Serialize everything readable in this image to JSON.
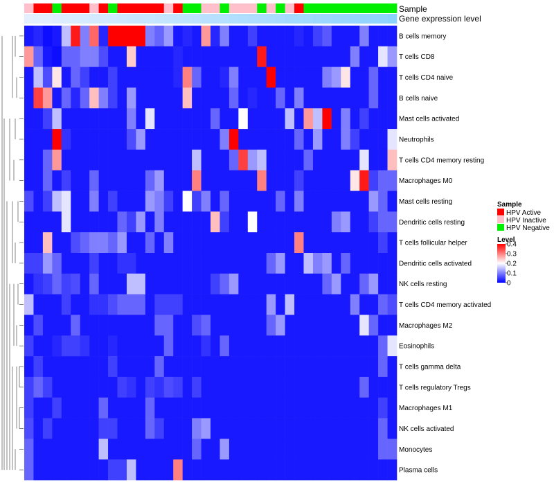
{
  "chart_data": {
    "type": "heatmap",
    "title": "",
    "annotation_tracks": [
      "Sample",
      "Gene expression level"
    ],
    "sample_legend": {
      "title": "Sample",
      "entries": [
        {
          "label": "HPV Active",
          "color": "#ff0000"
        },
        {
          "label": "HPV Inactive",
          "color": "#ffc0cb"
        },
        {
          "label": "HPV Negative",
          "color": "#00ee00"
        }
      ]
    },
    "level_legend": {
      "title": "Level",
      "ticks": [
        "0.4",
        "0.3",
        "0.2",
        "0.1",
        "0"
      ],
      "tick_values": [
        0.4,
        0.3,
        0.2,
        0.1,
        0
      ],
      "range": [
        0,
        0.4
      ],
      "colors": {
        "low": "#0000ff",
        "mid": "#ffffff",
        "high": "#ff0000"
      }
    },
    "sample_groups": [
      "Inactive",
      "Active",
      "Active",
      "Negative",
      "Active",
      "Active",
      "Active",
      "Inactive",
      "Active",
      "Negative",
      "Active",
      "Active",
      "Active",
      "Active",
      "Active",
      "Inactive",
      "Active",
      "Negative",
      "Negative",
      "Inactive",
      "Inactive",
      "Negative",
      "Inactive",
      "Inactive",
      "Inactive",
      "Negative",
      "Inactive",
      "Negative",
      "Inactive",
      "Active",
      "Negative",
      "Negative",
      "Negative",
      "Negative",
      "Negative",
      "Negative",
      "Negative",
      "Negative",
      "Negative",
      "Negative"
    ],
    "gene_expression_level": [
      0.02,
      0.05,
      0.07,
      0.1,
      0.12,
      0.15,
      0.18,
      0.2,
      0.22,
      0.25,
      0.28,
      0.3,
      0.32,
      0.35,
      0.37,
      0.4,
      0.42,
      0.45,
      0.47,
      0.5,
      0.52,
      0.55,
      0.57,
      0.6,
      0.62,
      0.65,
      0.67,
      0.7,
      0.72,
      0.75,
      0.77,
      0.8,
      0.82,
      0.85,
      0.87,
      0.9,
      0.92,
      0.95,
      0.97,
      1.0
    ],
    "row_labels": [
      "B cells memory",
      "T cells CD8",
      "T cells CD4 naive",
      "B cells naive",
      "Mast cells activated",
      "Neutrophils",
      "T cells CD4 memory resting",
      "Macrophages M0",
      "Mast cells resting",
      "Dendritic cells resting",
      "T cells follicular helper",
      "Dendritic cells activated",
      "NK cells resting",
      "T cells CD4 memory activated",
      "Macrophages M2",
      "Eosinophils",
      "T cells gamma delta",
      "T cells regulatory  Tregs",
      "Macrophages M1",
      "NK cells activated",
      "Monocytes",
      "Plasma cells"
    ],
    "values": [
      [
        0.02,
        0.03,
        0.01,
        0.02,
        0.15,
        0.38,
        0.1,
        0.32,
        0.03,
        0.4,
        0.4,
        0.4,
        0.4,
        0.1,
        0.08,
        0.12,
        0.02,
        0.03,
        0.02,
        0.28,
        0.03,
        0.1,
        0.02,
        0.02,
        0.05,
        0.02,
        0.02,
        0.02,
        0.02,
        0.03,
        0.02,
        0.05,
        0.07,
        0.02,
        0.02,
        0.02,
        0.1,
        0.02,
        0.02,
        0.02
      ],
      [
        0.28,
        0.08,
        0.02,
        0.01,
        0.08,
        0.08,
        0.1,
        0.1,
        0.06,
        0.02,
        0.02,
        0.24,
        0.02,
        0.02,
        0.02,
        0.02,
        0.03,
        0.02,
        0.02,
        0.02,
        0.02,
        0.02,
        0.02,
        0.02,
        0.02,
        0.38,
        0.02,
        0.02,
        0.02,
        0.02,
        0.02,
        0.02,
        0.02,
        0.02,
        0.02,
        0.1,
        0.02,
        0.02,
        0.18,
        0.12
      ],
      [
        0.02,
        0.15,
        0.06,
        0.22,
        0.02,
        0.08,
        0.05,
        0.02,
        0.02,
        0.05,
        0.02,
        0.02,
        0.02,
        0.02,
        0.02,
        0.02,
        0.03,
        0.3,
        0.08,
        0.02,
        0.02,
        0.03,
        0.1,
        0.02,
        0.02,
        0.02,
        0.4,
        0.02,
        0.02,
        0.02,
        0.02,
        0.02,
        0.1,
        0.12,
        0.22,
        0.02,
        0.02,
        0.08,
        0.02,
        0.02
      ],
      [
        0.02,
        0.35,
        0.28,
        0.02,
        0.08,
        0.03,
        0.08,
        0.25,
        0.1,
        0.05,
        0.02,
        0.12,
        0.02,
        0.02,
        0.02,
        0.02,
        0.02,
        0.25,
        0.02,
        0.02,
        0.02,
        0.02,
        0.08,
        0.02,
        0.03,
        0.02,
        0.02,
        0.08,
        0.02,
        0.1,
        0.02,
        0.02,
        0.02,
        0.02,
        0.02,
        0.02,
        0.02,
        0.08,
        0.02,
        0.02
      ],
      [
        0.02,
        0.02,
        0.05,
        0.15,
        0.02,
        0.02,
        0.02,
        0.02,
        0.02,
        0.02,
        0.02,
        0.1,
        0.02,
        0.18,
        0.02,
        0.02,
        0.02,
        0.02,
        0.02,
        0.02,
        0.08,
        0.02,
        0.02,
        0.2,
        0.02,
        0.02,
        0.02,
        0.02,
        0.15,
        0.02,
        0.28,
        0.15,
        0.4,
        0.02,
        0.1,
        0.02,
        0.05,
        0.02,
        0.02,
        0.02
      ],
      [
        0.02,
        0.02,
        0.02,
        0.4,
        0.04,
        0.02,
        0.02,
        0.02,
        0.02,
        0.02,
        0.02,
        0.06,
        0.12,
        0.02,
        0.02,
        0.02,
        0.02,
        0.02,
        0.02,
        0.02,
        0.02,
        0.1,
        0.4,
        0.02,
        0.02,
        0.02,
        0.02,
        0.02,
        0.02,
        0.08,
        0.02,
        0.12,
        0.02,
        0.02,
        0.1,
        0.05,
        0.02,
        0.02,
        0.02,
        0.18
      ],
      [
        0.02,
        0.02,
        0.08,
        0.28,
        0.02,
        0.02,
        0.02,
        0.02,
        0.02,
        0.02,
        0.02,
        0.02,
        0.02,
        0.02,
        0.02,
        0.02,
        0.02,
        0.02,
        0.15,
        0.02,
        0.02,
        0.02,
        0.08,
        0.35,
        0.12,
        0.15,
        0.02,
        0.02,
        0.02,
        0.02,
        0.08,
        0.02,
        0.02,
        0.02,
        0.02,
        0.02,
        0.18,
        0.02,
        0.02,
        0.25
      ],
      [
        0.02,
        0.02,
        0.08,
        0.02,
        0.05,
        0.02,
        0.02,
        0.08,
        0.02,
        0.02,
        0.02,
        0.02,
        0.02,
        0.08,
        0.12,
        0.02,
        0.02,
        0.02,
        0.3,
        0.02,
        0.02,
        0.02,
        0.02,
        0.02,
        0.02,
        0.3,
        0.02,
        0.02,
        0.02,
        0.05,
        0.02,
        0.02,
        0.02,
        0.02,
        0.02,
        0.22,
        0.38,
        0.05,
        0.08,
        0.08
      ],
      [
        0.06,
        0.02,
        0.05,
        0.15,
        0.18,
        0.02,
        0.02,
        0.1,
        0.02,
        0.05,
        0.02,
        0.02,
        0.02,
        0.12,
        0.1,
        0.05,
        0.02,
        0.2,
        0.05,
        0.1,
        0.02,
        0.08,
        0.02,
        0.02,
        0.02,
        0.02,
        0.02,
        0.08,
        0.02,
        0.1,
        0.02,
        0.02,
        0.02,
        0.02,
        0.02,
        0.02,
        0.02,
        0.12,
        0.08,
        0.02
      ],
      [
        0.02,
        0.02,
        0.02,
        0.02,
        0.18,
        0.02,
        0.02,
        0.02,
        0.02,
        0.02,
        0.08,
        0.05,
        0.12,
        0.02,
        0.1,
        0.02,
        0.02,
        0.02,
        0.02,
        0.02,
        0.25,
        0.05,
        0.02,
        0.02,
        0.2,
        0.02,
        0.02,
        0.02,
        0.02,
        0.02,
        0.02,
        0.02,
        0.02,
        0.1,
        0.12,
        0.02,
        0.02,
        0.05,
        0.08,
        0.08
      ],
      [
        0.02,
        0.02,
        0.25,
        0.02,
        0.02,
        0.06,
        0.08,
        0.1,
        0.1,
        0.08,
        0.12,
        0.02,
        0.02,
        0.08,
        0.02,
        0.1,
        0.02,
        0.02,
        0.02,
        0.02,
        0.02,
        0.02,
        0.02,
        0.02,
        0.02,
        0.02,
        0.02,
        0.02,
        0.02,
        0.3,
        0.02,
        0.02,
        0.02,
        0.02,
        0.02,
        0.02,
        0.02,
        0.02,
        0.05,
        0.02
      ],
      [
        0.05,
        0.05,
        0.12,
        0.08,
        0.02,
        0.02,
        0.02,
        0.05,
        0.02,
        0.02,
        0.04,
        0.04,
        0.02,
        0.02,
        0.02,
        0.02,
        0.02,
        0.02,
        0.02,
        0.02,
        0.02,
        0.02,
        0.02,
        0.02,
        0.02,
        0.02,
        0.08,
        0.12,
        0.02,
        0.02,
        0.15,
        0.1,
        0.12,
        0.02,
        0.08,
        0.02,
        0.02,
        0.02,
        0.02,
        0.02
      ],
      [
        0.02,
        0.04,
        0.05,
        0.08,
        0.05,
        0.06,
        0.02,
        0.08,
        0.02,
        0.02,
        0.02,
        0.15,
        0.15,
        0.02,
        0.02,
        0.02,
        0.02,
        0.02,
        0.02,
        0.02,
        0.05,
        0.08,
        0.12,
        0.02,
        0.02,
        0.02,
        0.02,
        0.02,
        0.02,
        0.02,
        0.02,
        0.02,
        0.08,
        0.12,
        0.02,
        0.02,
        0.08,
        0.12,
        0.02,
        0.02
      ],
      [
        0.15,
        0.02,
        0.02,
        0.02,
        0.05,
        0.02,
        0.02,
        0.04,
        0.04,
        0.06,
        0.08,
        0.08,
        0.08,
        0.02,
        0.05,
        0.05,
        0.05,
        0.02,
        0.02,
        0.02,
        0.02,
        0.02,
        0.02,
        0.02,
        0.02,
        0.02,
        0.12,
        0.02,
        0.15,
        0.02,
        0.02,
        0.02,
        0.02,
        0.02,
        0.02,
        0.1,
        0.02,
        0.02,
        0.08,
        0.06
      ],
      [
        0.02,
        0.06,
        0.02,
        0.02,
        0.02,
        0.08,
        0.02,
        0.02,
        0.02,
        0.02,
        0.02,
        0.02,
        0.02,
        0.02,
        0.08,
        0.08,
        0.02,
        0.02,
        0.06,
        0.08,
        0.02,
        0.02,
        0.02,
        0.02,
        0.02,
        0.02,
        0.08,
        0.12,
        0.02,
        0.02,
        0.02,
        0.02,
        0.02,
        0.02,
        0.02,
        0.02,
        0.18,
        0.08,
        0.02,
        0.02
      ],
      [
        0.05,
        0.02,
        0.02,
        0.03,
        0.05,
        0.05,
        0.04,
        0.02,
        0.02,
        0.03,
        0.02,
        0.02,
        0.02,
        0.02,
        0.02,
        0.08,
        0.02,
        0.02,
        0.02,
        0.04,
        0.02,
        0.08,
        0.02,
        0.02,
        0.02,
        0.02,
        0.02,
        0.02,
        0.02,
        0.02,
        0.02,
        0.02,
        0.02,
        0.02,
        0.02,
        0.02,
        0.02,
        0.02,
        0.08,
        0.18
      ],
      [
        0.02,
        0.05,
        0.02,
        0.02,
        0.02,
        0.02,
        0.02,
        0.02,
        0.02,
        0.05,
        0.02,
        0.02,
        0.02,
        0.02,
        0.08,
        0.02,
        0.02,
        0.02,
        0.02,
        0.02,
        0.02,
        0.02,
        0.02,
        0.02,
        0.02,
        0.02,
        0.02,
        0.02,
        0.02,
        0.02,
        0.02,
        0.02,
        0.02,
        0.02,
        0.02,
        0.02,
        0.02,
        0.02,
        0.08,
        0.02
      ],
      [
        0.05,
        0.08,
        0.05,
        0.02,
        0.02,
        0.02,
        0.02,
        0.02,
        0.02,
        0.02,
        0.05,
        0.04,
        0.02,
        0.05,
        0.04,
        0.06,
        0.05,
        0.02,
        0.05,
        0.02,
        0.02,
        0.02,
        0.02,
        0.02,
        0.02,
        0.02,
        0.02,
        0.02,
        0.02,
        0.02,
        0.02,
        0.02,
        0.02,
        0.02,
        0.02,
        0.02,
        0.08,
        0.02,
        0.02,
        0.02
      ],
      [
        0.05,
        0.02,
        0.02,
        0.05,
        0.02,
        0.02,
        0.02,
        0.02,
        0.08,
        0.02,
        0.02,
        0.02,
        0.02,
        0.08,
        0.02,
        0.02,
        0.02,
        0.02,
        0.02,
        0.02,
        0.02,
        0.02,
        0.02,
        0.02,
        0.02,
        0.02,
        0.02,
        0.02,
        0.02,
        0.02,
        0.02,
        0.02,
        0.02,
        0.02,
        0.02,
        0.02,
        0.02,
        0.02,
        0.05,
        0.02
      ],
      [
        0.06,
        0.02,
        0.05,
        0.02,
        0.02,
        0.02,
        0.02,
        0.02,
        0.05,
        0.05,
        0.02,
        0.02,
        0.02,
        0.08,
        0.05,
        0.02,
        0.02,
        0.02,
        0.1,
        0.12,
        0.02,
        0.02,
        0.02,
        0.02,
        0.02,
        0.02,
        0.02,
        0.02,
        0.02,
        0.02,
        0.02,
        0.02,
        0.02,
        0.02,
        0.02,
        0.02,
        0.02,
        0.02,
        0.08,
        0.02
      ],
      [
        0.08,
        0.02,
        0.02,
        0.02,
        0.02,
        0.02,
        0.02,
        0.02,
        0.15,
        0.02,
        0.02,
        0.02,
        0.02,
        0.02,
        0.02,
        0.02,
        0.02,
        0.02,
        0.08,
        0.02,
        0.02,
        0.12,
        0.02,
        0.02,
        0.02,
        0.02,
        0.02,
        0.02,
        0.02,
        0.02,
        0.02,
        0.02,
        0.02,
        0.02,
        0.02,
        0.02,
        0.02,
        0.02,
        0.08,
        0.08
      ],
      [
        0.08,
        0.02,
        0.02,
        0.02,
        0.02,
        0.02,
        0.02,
        0.02,
        0.02,
        0.05,
        0.05,
        0.15,
        0.02,
        0.02,
        0.02,
        0.02,
        0.3,
        0.02,
        0.02,
        0.02,
        0.02,
        0.02,
        0.02,
        0.02,
        0.02,
        0.02,
        0.02,
        0.02,
        0.02,
        0.02,
        0.02,
        0.02,
        0.02,
        0.02,
        0.02,
        0.02,
        0.02,
        0.02,
        0.02,
        0.02
      ]
    ]
  }
}
